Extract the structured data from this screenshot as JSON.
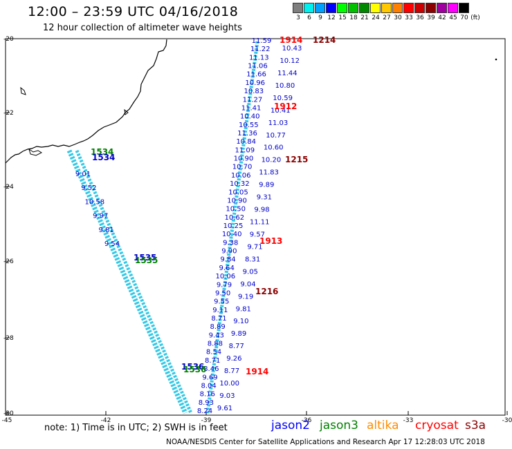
{
  "header": {
    "title": "12:00 – 23:59 UTC 04/16/2018",
    "subtitle": "12 hour collection of altimeter wave heights"
  },
  "legend": {
    "unit": "(ft)",
    "bins": [
      {
        "label": "3",
        "color": "#7f7f7f"
      },
      {
        "label": "6",
        "color": "#00f0f0"
      },
      {
        "label": "9",
        "color": "#00a0ff"
      },
      {
        "label": "12",
        "color": "#0000ff"
      },
      {
        "label": "15",
        "color": "#00ff00"
      },
      {
        "label": "18",
        "color": "#00c000"
      },
      {
        "label": "21",
        "color": "#008800"
      },
      {
        "label": "24",
        "color": "#ffff00"
      },
      {
        "label": "27",
        "color": "#ffc800"
      },
      {
        "label": "30",
        "color": "#ff8000"
      },
      {
        "label": "33",
        "color": "#ff0000"
      },
      {
        "label": "36",
        "color": "#cc0000"
      },
      {
        "label": "39",
        "color": "#8b0000"
      },
      {
        "label": "42",
        "color": "#a000a0"
      },
      {
        "label": "45",
        "color": "#ff00ff"
      },
      {
        "label": "70",
        "color": "#000000"
      }
    ]
  },
  "axes": {
    "lat_labels": [
      "-20",
      "-22",
      "-24",
      "-26",
      "-28",
      "-30"
    ],
    "lon_labels": [
      "-45",
      "-42",
      "-39",
      "-36",
      "-33",
      "-30"
    ]
  },
  "track_labels": [
    {
      "text": "1534",
      "color": "#008000"
    },
    {
      "text": "1534",
      "color": "#0000cc"
    },
    {
      "text": "1535",
      "color": "#0000cc"
    },
    {
      "text": "1535",
      "color": "#008000"
    },
    {
      "text": "1536",
      "color": "#0000cc"
    },
    {
      "text": "1536",
      "color": "#008000"
    },
    {
      "text": "1914",
      "color": "#ff0000"
    },
    {
      "text": "1214",
      "color": "#8b0000"
    },
    {
      "text": "1912",
      "color": "#ff0000"
    },
    {
      "text": "1215",
      "color": "#8b0000"
    },
    {
      "text": "1913",
      "color": "#ff0000"
    },
    {
      "text": "1216",
      "color": "#8b0000"
    },
    {
      "text": "1914",
      "color": "#ff0000"
    }
  ],
  "track_a_values": [
    "11.59",
    "11.22",
    "11.13",
    "11.06",
    "11.66",
    "10.96",
    "10.83",
    "11.27",
    "11.41",
    "10.40",
    "10.55",
    "11.36",
    "10.84",
    "11.09",
    "10.90",
    "10.70",
    "10.06",
    "10.32",
    "10.05",
    "10.90",
    "10.50",
    "10.62",
    "10.25",
    "10.40",
    "9.38",
    "9.90",
    "9.84",
    "9.64",
    "10.06",
    "9.79",
    "9.50",
    "9.55",
    "9.11",
    "8.71",
    "8.89",
    "9.43",
    "8.88",
    "8.54",
    "8.71",
    "8.46",
    "9.69",
    "8.04",
    "8.16",
    "8.93",
    "8.24"
  ],
  "track_b_values": [
    "10.43",
    "10.12",
    "11.44",
    "10.80",
    "10.59",
    "10.41",
    "11.03",
    "10.77",
    "10.60",
    "10.20",
    "11.83",
    "9.89",
    "9.31",
    "9.98",
    "11.11",
    "9.57",
    "9.71",
    "8.31",
    "9.05",
    "9.04",
    "9.19",
    "9.81",
    "9.10",
    "9.89",
    "8.77",
    "9.26",
    "8.77",
    "10.00",
    "9.03",
    "9.61"
  ],
  "track_c_values": [
    "9.01",
    "9.52",
    "10.58",
    "9.97",
    "9.81",
    "9.54"
  ],
  "notes": {
    "note": "note:  1) Time is in UTC;  2) SWH is in feet",
    "credit": "NOAA/NESDIS Center for Satellite Applications and Research    Apr 17 12:28:03 UTC 2018"
  },
  "satellites": [
    {
      "name": "jason2",
      "color": "#0000ff"
    },
    {
      "name": "jason3",
      "color": "#008000"
    },
    {
      "name": "altika",
      "color": "#ff8c00"
    },
    {
      "name": "cryosat",
      "color": "#ff0000"
    },
    {
      "name": "s3a",
      "color": "#8b0000"
    }
  ]
}
